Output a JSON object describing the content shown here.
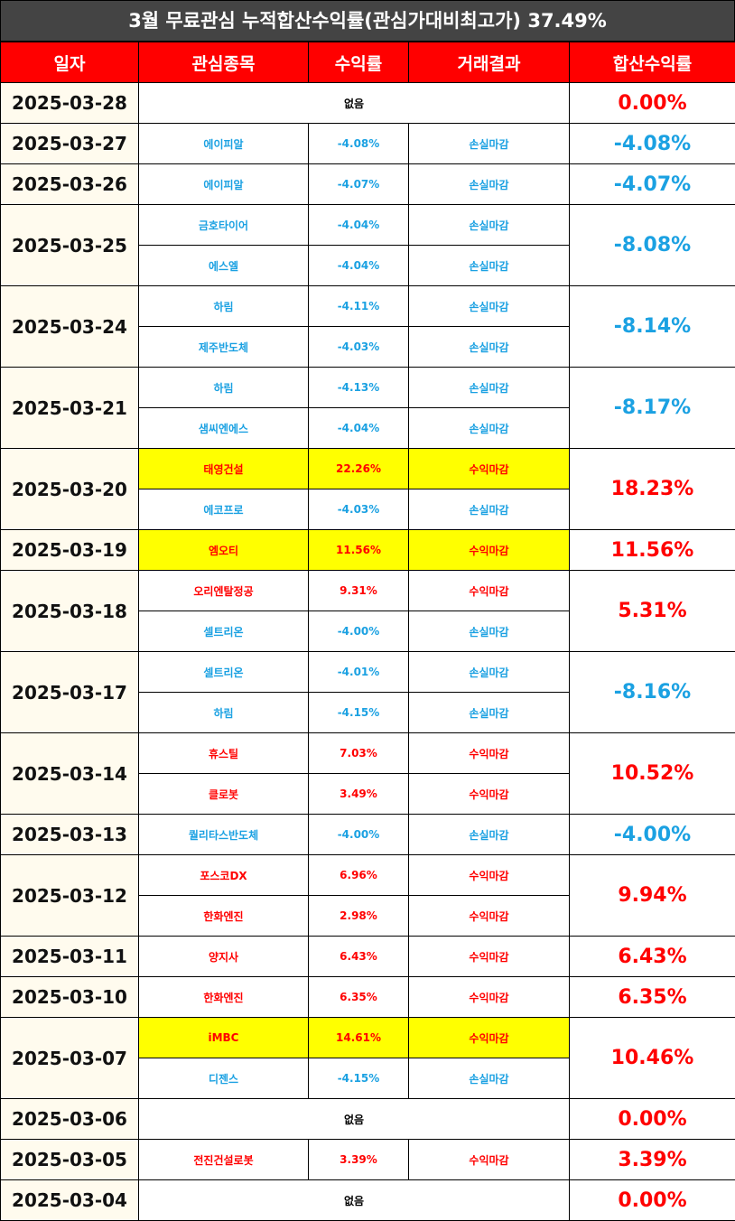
{
  "title": "3월 무료관심 누적합산수익률(관심가대비최고가) 37.49%",
  "header": [
    "일자",
    "관심종목",
    "수익률",
    "거래결과",
    "합산수익률"
  ],
  "colors": {
    "title_bg": "#444444",
    "header_bg": "#ff0000",
    "date_bg": "#fffbee",
    "highlight": "#ffff00"
  },
  "rows": [
    {
      "date": "2025-03-28",
      "note": "없음",
      "total": "0.00%",
      "color": "#ff0000"
    },
    {
      "date": "2025-03-27",
      "total": "-4.08%",
      "color": "#1ba1e2",
      "trades": [
        {
          "stock": "에이피알",
          "return": "-4.08%",
          "result": "손실마감",
          "color": "#1ba1e2"
        }
      ]
    },
    {
      "date": "2025-03-26",
      "total": "-4.07%",
      "color": "#1ba1e2",
      "trades": [
        {
          "stock": "에이피알",
          "return": "-4.07%",
          "result": "손실마감",
          "color": "#1ba1e2"
        }
      ]
    },
    {
      "date": "2025-03-25",
      "total": "-8.08%",
      "color": "#1ba1e2",
      "trades": [
        {
          "stock": "금호타이어",
          "return": "-4.04%",
          "result": "손실마감",
          "color": "#1ba1e2"
        },
        {
          "stock": "에스엘",
          "return": "-4.04%",
          "result": "손실마감",
          "color": "#1ba1e2"
        }
      ]
    },
    {
      "date": "2025-03-24",
      "total": "-8.14%",
      "color": "#1ba1e2",
      "trades": [
        {
          "stock": "하림",
          "return": "-4.11%",
          "result": "손실마감",
          "color": "#1ba1e2"
        },
        {
          "stock": "제주반도체",
          "return": "-4.03%",
          "result": "손실마감",
          "color": "#1ba1e2"
        }
      ]
    },
    {
      "date": "2025-03-21",
      "total": "-8.17%",
      "color": "#1ba1e2",
      "trades": [
        {
          "stock": "하림",
          "return": "-4.13%",
          "result": "손실마감",
          "color": "#1ba1e2"
        },
        {
          "stock": "샘씨엔에스",
          "return": "-4.04%",
          "result": "손실마감",
          "color": "#1ba1e2"
        }
      ]
    },
    {
      "date": "2025-03-20",
      "total": "18.23%",
      "color": "#ff0000",
      "trades": [
        {
          "stock": "태영건설",
          "return": "22.26%",
          "result": "수익마감",
          "color": "#ff0000",
          "highlight": true
        },
        {
          "stock": "에코프로",
          "return": "-4.03%",
          "result": "손실마감",
          "color": "#1ba1e2"
        }
      ]
    },
    {
      "date": "2025-03-19",
      "total": "11.56%",
      "color": "#ff0000",
      "trades": [
        {
          "stock": "엠오티",
          "return": "11.56%",
          "result": "수익마감",
          "color": "#ff0000",
          "highlight": true
        }
      ]
    },
    {
      "date": "2025-03-18",
      "total": "5.31%",
      "color": "#ff0000",
      "trades": [
        {
          "stock": "오리엔탈정공",
          "return": "9.31%",
          "result": "수익마감",
          "color": "#ff0000"
        },
        {
          "stock": "셀트리온",
          "return": "-4.00%",
          "result": "손실마감",
          "color": "#1ba1e2"
        }
      ]
    },
    {
      "date": "2025-03-17",
      "total": "-8.16%",
      "color": "#1ba1e2",
      "trades": [
        {
          "stock": "셀트리온",
          "return": "-4.01%",
          "result": "손실마감",
          "color": "#1ba1e2"
        },
        {
          "stock": "하림",
          "return": "-4.15%",
          "result": "손실마감",
          "color": "#1ba1e2"
        }
      ]
    },
    {
      "date": "2025-03-14",
      "total": "10.52%",
      "color": "#ff0000",
      "trades": [
        {
          "stock": "휴스틸",
          "return": "7.03%",
          "result": "수익마감",
          "color": "#ff0000"
        },
        {
          "stock": "클로봇",
          "return": "3.49%",
          "result": "수익마감",
          "color": "#ff0000"
        }
      ]
    },
    {
      "date": "2025-03-13",
      "total": "-4.00%",
      "color": "#1ba1e2",
      "trades": [
        {
          "stock": "퀄리타스반도체",
          "return": "-4.00%",
          "result": "손실마감",
          "color": "#1ba1e2"
        }
      ]
    },
    {
      "date": "2025-03-12",
      "total": "9.94%",
      "color": "#ff0000",
      "trades": [
        {
          "stock": "포스코DX",
          "return": "6.96%",
          "result": "수익마감",
          "color": "#ff0000"
        },
        {
          "stock": "한화엔진",
          "return": "2.98%",
          "result": "수익마감",
          "color": "#ff0000"
        }
      ]
    },
    {
      "date": "2025-03-11",
      "total": "6.43%",
      "color": "#ff0000",
      "trades": [
        {
          "stock": "양지사",
          "return": "6.43%",
          "result": "수익마감",
          "color": "#ff0000"
        }
      ]
    },
    {
      "date": "2025-03-10",
      "total": "6.35%",
      "color": "#ff0000",
      "trades": [
        {
          "stock": "한화엔진",
          "return": "6.35%",
          "result": "수익마감",
          "color": "#ff0000"
        }
      ]
    },
    {
      "date": "2025-03-07",
      "total": "10.46%",
      "color": "#ff0000",
      "trades": [
        {
          "stock": "iMBC",
          "return": "14.61%",
          "result": "수익마감",
          "color": "#ff0000",
          "highlight": true
        },
        {
          "stock": "디젠스",
          "return": "-4.15%",
          "result": "손실마감",
          "color": "#1ba1e2"
        }
      ]
    },
    {
      "date": "2025-03-06",
      "note": "없음",
      "total": "0.00%",
      "color": "#ff0000"
    },
    {
      "date": "2025-03-05",
      "total": "3.39%",
      "color": "#ff0000",
      "trades": [
        {
          "stock": "전진건설로봇",
          "return": "3.39%",
          "result": "수익마감",
          "color": "#ff0000"
        }
      ]
    },
    {
      "date": "2025-03-04",
      "note": "없음",
      "total": "0.00%",
      "color": "#ff0000"
    }
  ]
}
